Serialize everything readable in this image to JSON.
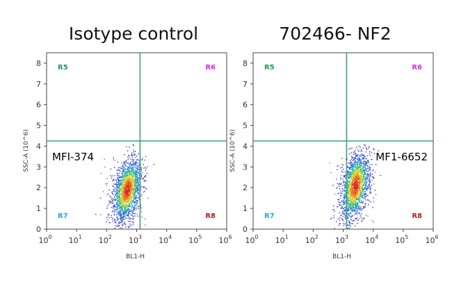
{
  "chart_data": [
    {
      "type": "scatter",
      "title": "Isotype control",
      "xlabel": "BL1-H",
      "ylabel": "SSC-A (10^6)",
      "xscale": "log",
      "xlim": [
        1,
        1000000
      ],
      "ylim": [
        0,
        8.5
      ],
      "x_ticks": [
        "10",
        "10",
        "10",
        "10",
        "10",
        "10",
        "10"
      ],
      "x_tick_exponents": [
        "0",
        "1",
        "2",
        "3",
        "4",
        "5",
        "6"
      ],
      "y_ticks": [
        "0",
        "1",
        "2",
        "3",
        "4",
        "5",
        "6",
        "7",
        "8"
      ],
      "gate": {
        "x": 1300,
        "y": 4.25,
        "color": "#3aa56a"
      },
      "regions": [
        {
          "label": "R5",
          "color": "#1f9a55",
          "position": "top-left"
        },
        {
          "label": "R6",
          "color": "#d62fd6",
          "position": "top-right"
        },
        {
          "label": "R7",
          "color": "#2aa6d6",
          "position": "bottom-left"
        },
        {
          "label": "R8",
          "color": "#b02222",
          "position": "bottom-right"
        }
      ],
      "annotation": "MFI-374",
      "population": {
        "center_x": 470,
        "center_y": 1.9,
        "spread_log10": 0.22,
        "spread_y": 0.75,
        "tilt": 0.9
      },
      "colormap": "density (blue→green→yellow→red)"
    },
    {
      "type": "scatter",
      "title": "702466- NF2",
      "xlabel": "BL1-H",
      "ylabel": "SSC-A (10^6)",
      "xscale": "log",
      "xlim": [
        1,
        1000000
      ],
      "ylim": [
        0,
        8.5
      ],
      "x_ticks": [
        "10",
        "10",
        "10",
        "10",
        "10",
        "10",
        "10"
      ],
      "x_tick_exponents": [
        "0",
        "1",
        "2",
        "3",
        "4",
        "5",
        "6"
      ],
      "y_ticks": [
        "0",
        "1",
        "2",
        "3",
        "4",
        "5",
        "6",
        "7",
        "8"
      ],
      "gate": {
        "x": 1300,
        "y": 4.25,
        "color": "#3aa56a"
      },
      "regions": [
        {
          "label": "R5",
          "color": "#1f9a55",
          "position": "top-left"
        },
        {
          "label": "R6",
          "color": "#d62fd6",
          "position": "top-right"
        },
        {
          "label": "R7",
          "color": "#2aa6d6",
          "position": "bottom-left"
        },
        {
          "label": "R8",
          "color": "#b02222",
          "position": "bottom-right"
        }
      ],
      "annotation": "MF1-6652",
      "population": {
        "center_x": 2500,
        "center_y": 2.1,
        "spread_log10": 0.22,
        "spread_y": 0.8,
        "tilt": 0.9
      },
      "colormap": "density (blue→green→yellow→red)"
    }
  ]
}
